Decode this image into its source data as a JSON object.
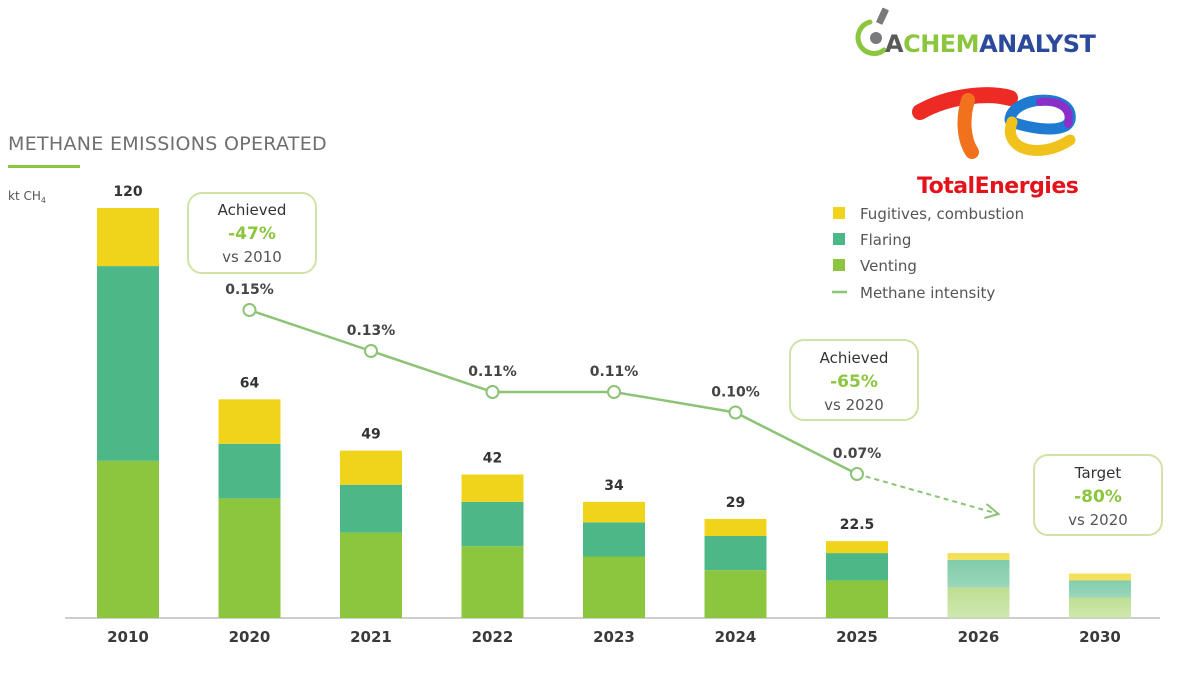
{
  "logos": {
    "chemanalyst_a": "A",
    "chemanalyst_chem": "CHEM",
    "chemanalyst_analyst": "ANALYST",
    "totalenergies": "TotalEnergies"
  },
  "chart_data": {
    "type": "bar",
    "stacked": true,
    "title": "METHANE EMISSIONS OPERATED",
    "unit_label": "kt CH",
    "unit_subscript": "4",
    "categories": [
      "2010",
      "2020",
      "2021",
      "2022",
      "2023",
      "2024",
      "2025",
      "2026",
      "2030"
    ],
    "totals": [
      120,
      64,
      49,
      42,
      34,
      29,
      22.5,
      19,
      13
    ],
    "total_labels": [
      "120",
      "64",
      "49",
      "42",
      "34",
      "29",
      "22.5",
      "",
      ""
    ],
    "projected": [
      false,
      false,
      false,
      false,
      false,
      false,
      false,
      true,
      true
    ],
    "series": [
      {
        "name": "Venting",
        "color": "#8cc63f",
        "values": [
          46,
          35,
          25,
          21,
          18,
          14,
          11,
          9,
          6
        ]
      },
      {
        "name": "Flaring",
        "color": "#4db887",
        "values": [
          57,
          16,
          14,
          13,
          10,
          10,
          8,
          8,
          5
        ]
      },
      {
        "name": "Fugitives, combustion",
        "color": "#f0d41c",
        "values": [
          17,
          13,
          10,
          8,
          6,
          5,
          3.5,
          2,
          2
        ]
      }
    ],
    "intensity": {
      "name": "Methane intensity",
      "color": "#8cc377",
      "categories": [
        "2020",
        "2021",
        "2022",
        "2023",
        "2024",
        "2025"
      ],
      "values": [
        0.15,
        0.13,
        0.11,
        0.11,
        0.1,
        0.07
      ],
      "labels": [
        "0.15%",
        "0.13%",
        "0.11%",
        "0.11%",
        "0.10%",
        "0.07%"
      ],
      "projected_to": "2026"
    },
    "legend": {
      "placement": "top-right",
      "items": [
        {
          "label": "Fugitives, combustion",
          "color": "#f0d41c",
          "kind": "square"
        },
        {
          "label": "Flaring",
          "color": "#4db887",
          "kind": "square"
        },
        {
          "label": "Venting",
          "color": "#8cc63f",
          "kind": "square"
        },
        {
          "label": "Methane intensity",
          "color": "#8cc377",
          "kind": "line"
        }
      ]
    },
    "callouts": [
      {
        "top": "Achieved",
        "value": "-47%",
        "bottom": "vs 2010"
      },
      {
        "top": "Achieved",
        "value": "-65%",
        "bottom": "vs 2020"
      },
      {
        "top": "Target",
        "value": "-80%",
        "bottom": "vs 2020"
      }
    ]
  }
}
